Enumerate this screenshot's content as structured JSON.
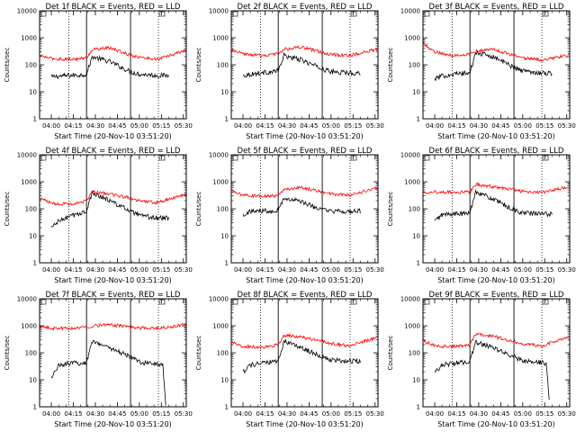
{
  "chart_data": [
    {
      "type": "line",
      "title": "Det 1f BLACK = Events, RED = LLD",
      "xlabel": "Start Time (20-Nov-10 03:51:20)",
      "ylabel": "Counts/sec",
      "xticks": [
        "04:00",
        "04:15",
        "04:30",
        "04:45",
        "05:00",
        "05:15",
        "05:30"
      ],
      "yticks": [
        "1",
        "10",
        "100",
        "1000",
        "10000"
      ],
      "xlim_minutes": [
        -8,
        92
      ],
      "ylim": [
        1,
        10000
      ],
      "yscale": "log",
      "vlines_dotted_minutes": [
        12,
        73
      ],
      "vlines_solid_minutes": [
        24,
        54
      ],
      "series": [
        {
          "name": "Events",
          "color": "#000000",
          "x": [
            0,
            5,
            12,
            20,
            24,
            28,
            40,
            54,
            60,
            73,
            80
          ],
          "y": [
            35,
            38,
            40,
            42,
            45,
            200,
            130,
            55,
            45,
            40,
            40
          ]
        },
        {
          "name": "LLD",
          "color": "#ff0000",
          "x": [
            -8,
            0,
            12,
            20,
            24,
            28,
            40,
            54,
            60,
            73,
            92
          ],
          "y": [
            220,
            170,
            160,
            170,
            180,
            370,
            420,
            230,
            190,
            160,
            350
          ]
        }
      ]
    },
    {
      "type": "line",
      "title": "Det 2f BLACK = Events, RED = LLD",
      "xlabel": "Start Time (20-Nov-10 03:51:20)",
      "ylabel": "Counts/sec",
      "xticks": [
        "04:00",
        "04:15",
        "04:30",
        "04:45",
        "05:00",
        "05:15",
        "05:30"
      ],
      "yticks": [
        "1",
        "10",
        "100",
        "1000",
        "10000"
      ],
      "xlim_minutes": [
        -8,
        92
      ],
      "ylim": [
        1,
        10000
      ],
      "yscale": "log",
      "vlines_dotted_minutes": [
        12,
        73
      ],
      "vlines_solid_minutes": [
        24,
        54
      ],
      "series": [
        {
          "name": "Events",
          "color": "#000000",
          "x": [
            0,
            5,
            12,
            20,
            24,
            28,
            40,
            54,
            60,
            73,
            80
          ],
          "y": [
            40,
            45,
            50,
            55,
            60,
            220,
            150,
            70,
            55,
            50,
            50
          ]
        },
        {
          "name": "LLD",
          "color": "#ff0000",
          "x": [
            -8,
            0,
            12,
            20,
            24,
            28,
            40,
            54,
            60,
            73,
            92
          ],
          "y": [
            350,
            250,
            220,
            240,
            260,
            380,
            450,
            280,
            240,
            220,
            380
          ]
        }
      ]
    },
    {
      "type": "line",
      "title": "Det 3f BLACK = Events, RED = LLD",
      "xlabel": "Start Time (20-Nov-10 03:51:20)",
      "ylabel": "Counts/sec",
      "xticks": [
        "04:00",
        "04:15",
        "04:30",
        "04:45",
        "05:00",
        "05:15",
        "05:30"
      ],
      "yticks": [
        "1",
        "10",
        "100",
        "1000",
        "10000"
      ],
      "xlim_minutes": [
        -8,
        92
      ],
      "ylim": [
        1,
        10000
      ],
      "yscale": "log",
      "vlines_dotted_minutes": [
        12,
        73
      ],
      "vlines_solid_minutes": [
        24,
        54
      ],
      "series": [
        {
          "name": "Events",
          "color": "#000000",
          "x": [
            0,
            5,
            12,
            20,
            24,
            28,
            40,
            54,
            60,
            73,
            80
          ],
          "y": [
            30,
            38,
            45,
            48,
            50,
            280,
            200,
            80,
            60,
            50,
            48
          ]
        },
        {
          "name": "LLD",
          "color": "#ff0000",
          "x": [
            -8,
            0,
            12,
            20,
            24,
            28,
            40,
            54,
            60,
            73,
            92
          ],
          "y": [
            650,
            300,
            220,
            240,
            260,
            320,
            380,
            220,
            180,
            150,
            230
          ]
        }
      ]
    },
    {
      "type": "line",
      "title": "Det 4f BLACK = Events, RED = LLD",
      "xlabel": "Start Time (20-Nov-10 03:51:20)",
      "ylabel": "Counts/sec",
      "xticks": [
        "04:00",
        "04:15",
        "04:30",
        "04:45",
        "05:00",
        "05:15",
        "05:30"
      ],
      "yticks": [
        "1",
        "10",
        "100",
        "1000",
        "10000"
      ],
      "xlim_minutes": [
        -8,
        92
      ],
      "ylim": [
        1,
        10000
      ],
      "yscale": "log",
      "vlines_dotted_minutes": [
        12,
        73
      ],
      "vlines_solid_minutes": [
        24,
        54
      ],
      "series": [
        {
          "name": "Events",
          "color": "#000000",
          "x": [
            0,
            5,
            12,
            20,
            24,
            28,
            40,
            54,
            60,
            73,
            80
          ],
          "y": [
            20,
            35,
            50,
            70,
            80,
            400,
            200,
            80,
            55,
            45,
            45
          ]
        },
        {
          "name": "LLD",
          "color": "#ff0000",
          "x": [
            -8,
            0,
            12,
            20,
            24,
            28,
            40,
            54,
            60,
            73,
            92
          ],
          "y": [
            250,
            160,
            150,
            170,
            200,
            430,
            350,
            250,
            200,
            170,
            350
          ]
        }
      ]
    },
    {
      "type": "line",
      "title": "Det 5f BLACK = Events, RED = LLD",
      "xlabel": "Start Time (20-Nov-10 03:51:20)",
      "ylabel": "Counts/sec",
      "xticks": [
        "04:00",
        "04:15",
        "04:30",
        "04:45",
        "05:00",
        "05:15",
        "05:30"
      ],
      "yticks": [
        "1",
        "10",
        "100",
        "1000",
        "10000"
      ],
      "xlim_minutes": [
        -8,
        92
      ],
      "ylim": [
        1,
        10000
      ],
      "yscale": "log",
      "vlines_dotted_minutes": [
        12,
        73
      ],
      "vlines_solid_minutes": [
        24,
        54
      ],
      "series": [
        {
          "name": "Events",
          "color": "#000000",
          "x": [
            0,
            5,
            12,
            20,
            24,
            28,
            40,
            54,
            60,
            73,
            80
          ],
          "y": [
            60,
            80,
            85,
            85,
            90,
            250,
            180,
            90,
            80,
            80,
            80
          ]
        },
        {
          "name": "LLD",
          "color": "#ff0000",
          "x": [
            -8,
            0,
            12,
            20,
            24,
            28,
            40,
            54,
            60,
            73,
            92
          ],
          "y": [
            450,
            320,
            300,
            300,
            310,
            550,
            600,
            420,
            350,
            320,
            600
          ]
        }
      ]
    },
    {
      "type": "line",
      "title": "Det 6f BLACK = Events, RED = LLD",
      "xlabel": "Start Time (20-Nov-10 03:51:20)",
      "ylabel": "Counts/sec",
      "xticks": [
        "04:00",
        "04:15",
        "04:30",
        "04:45",
        "05:00",
        "05:15",
        "05:30"
      ],
      "yticks": [
        "1",
        "10",
        "100",
        "1000",
        "10000"
      ],
      "xlim_minutes": [
        -8,
        92
      ],
      "ylim": [
        1,
        10000
      ],
      "yscale": "log",
      "vlines_dotted_minutes": [
        12,
        73
      ],
      "vlines_solid_minutes": [
        24,
        54
      ],
      "series": [
        {
          "name": "Events",
          "color": "#000000",
          "x": [
            0,
            5,
            12,
            20,
            24,
            28,
            40,
            54,
            60,
            73,
            80
          ],
          "y": [
            35,
            60,
            65,
            65,
            70,
            450,
            220,
            90,
            70,
            65,
            62
          ]
        },
        {
          "name": "LLD",
          "color": "#ff0000",
          "x": [
            -8,
            0,
            12,
            20,
            24,
            28,
            40,
            54,
            60,
            73,
            92
          ],
          "y": [
            430,
            420,
            410,
            400,
            420,
            800,
            650,
            500,
            430,
            400,
            650
          ]
        }
      ]
    },
    {
      "type": "line",
      "title": "Det 7f BLACK = Events, RED = LLD",
      "xlabel": "Start Time (20-Nov-10 03:51:20)",
      "ylabel": "Counts/sec",
      "xticks": [
        "04:00",
        "04:15",
        "04:30",
        "04:45",
        "05:00",
        "05:15",
        "05:30"
      ],
      "yticks": [
        "1",
        "10",
        "100",
        "1000",
        "10000"
      ],
      "xlim_minutes": [
        -8,
        92
      ],
      "ylim": [
        1,
        10000
      ],
      "yscale": "log",
      "vlines_dotted_minutes": [
        12,
        73
      ],
      "vlines_solid_minutes": [
        24,
        54
      ],
      "series": [
        {
          "name": "Events",
          "color": "#000000",
          "x": [
            0,
            5,
            12,
            20,
            24,
            28,
            40,
            54,
            60,
            70,
            76,
            78
          ],
          "y": [
            12,
            35,
            40,
            42,
            45,
            280,
            150,
            70,
            45,
            40,
            35,
            1
          ]
        },
        {
          "name": "LLD",
          "color": "#ff0000",
          "x": [
            -8,
            0,
            12,
            20,
            24,
            28,
            40,
            54,
            60,
            73,
            92
          ],
          "y": [
            950,
            800,
            800,
            850,
            900,
            1000,
            1100,
            900,
            850,
            800,
            1100
          ]
        }
      ]
    },
    {
      "type": "line",
      "title": "Det 8f BLACK = Events, RED = LLD",
      "xlabel": "Start Time (20-Nov-10 03:51:20)",
      "ylabel": "Counts/sec",
      "xticks": [
        "04:00",
        "04:15",
        "04:30",
        "04:45",
        "05:00",
        "05:15",
        "05:30"
      ],
      "yticks": [
        "1",
        "10",
        "100",
        "1000",
        "10000"
      ],
      "xlim_minutes": [
        -8,
        92
      ],
      "ylim": [
        1,
        10000
      ],
      "yscale": "log",
      "vlines_dotted_minutes": [
        12,
        73
      ],
      "vlines_solid_minutes": [
        24,
        54
      ],
      "series": [
        {
          "name": "Events",
          "color": "#000000",
          "x": [
            0,
            5,
            12,
            20,
            24,
            28,
            40,
            54,
            60,
            73,
            80
          ],
          "y": [
            20,
            35,
            40,
            45,
            50,
            280,
            150,
            70,
            55,
            50,
            50
          ]
        },
        {
          "name": "LLD",
          "color": "#ff0000",
          "x": [
            -8,
            0,
            12,
            20,
            24,
            28,
            40,
            54,
            60,
            73,
            92
          ],
          "y": [
            250,
            170,
            160,
            180,
            200,
            450,
            380,
            260,
            220,
            180,
            380
          ]
        }
      ]
    },
    {
      "type": "line",
      "title": "Det 9f BLACK = Events, RED = LLD",
      "xlabel": "Start Time (20-Nov-10 03:51:20)",
      "ylabel": "Counts/sec",
      "xticks": [
        "04:00",
        "04:15",
        "04:30",
        "04:45",
        "05:00",
        "05:15",
        "05:30"
      ],
      "yticks": [
        "1",
        "10",
        "100",
        "1000",
        "10000"
      ],
      "xlim_minutes": [
        -8,
        92
      ],
      "ylim": [
        1,
        10000
      ],
      "yscale": "log",
      "vlines_dotted_minutes": [
        12,
        73
      ],
      "vlines_solid_minutes": [
        24,
        54
      ],
      "series": [
        {
          "name": "Events",
          "color": "#000000",
          "x": [
            0,
            5,
            12,
            20,
            24,
            28,
            40,
            54,
            60,
            70,
            76,
            78
          ],
          "y": [
            20,
            35,
            40,
            45,
            50,
            250,
            150,
            70,
            50,
            45,
            40,
            2
          ]
        },
        {
          "name": "LLD",
          "color": "#ff0000",
          "x": [
            -8,
            0,
            12,
            20,
            24,
            28,
            40,
            54,
            60,
            73,
            92
          ],
          "y": [
            280,
            180,
            170,
            180,
            200,
            480,
            400,
            260,
            210,
            180,
            380
          ]
        }
      ]
    }
  ]
}
